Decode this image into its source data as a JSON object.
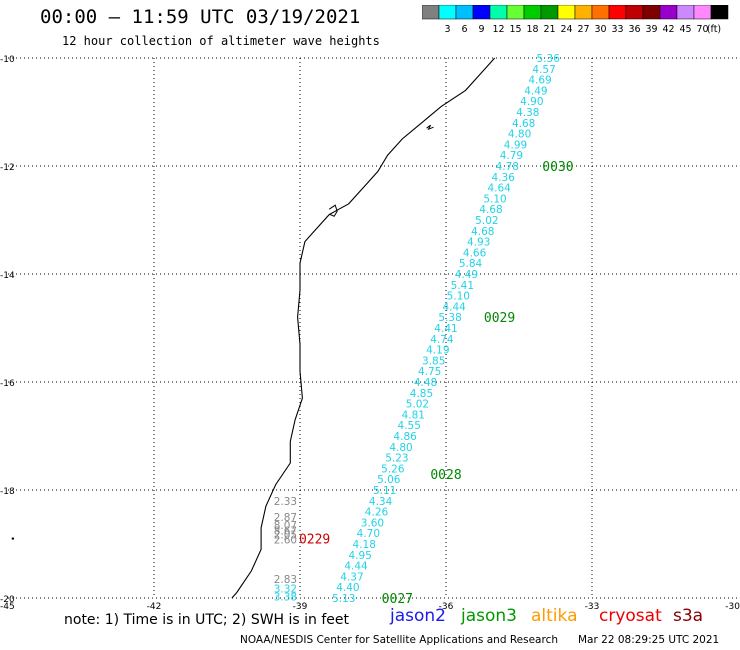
{
  "title": "00:00 – 11:59 UTC 03/19/2021",
  "subtitle": "12 hour collection of altimeter wave heights",
  "colorbar": {
    "labels": [
      "3",
      "6",
      "9",
      "12",
      "15",
      "18",
      "21",
      "24",
      "27",
      "30",
      "33",
      "36",
      "39",
      "42",
      "45",
      "70"
    ],
    "unit": "(ft)",
    "colors": [
      "#808080",
      "#00ffff",
      "#00bfff",
      "#0000ff",
      "#00ffaa",
      "#66ff33",
      "#00cc00",
      "#009900",
      "#ffff00",
      "#ffb000",
      "#ff7000",
      "#ff0000",
      "#c00000",
      "#800000",
      "#9900cc",
      "#cc88ff",
      "#ff88ff",
      "#000000"
    ]
  },
  "map": {
    "lat_labels": [
      "-10",
      "-12",
      "-14",
      "-16",
      "-18",
      "-20"
    ],
    "lon_labels": [
      "-45",
      "-42",
      "-39",
      "-36",
      "-33",
      "-30"
    ]
  },
  "chart_data": {
    "type": "scatter",
    "x_range": [
      -45,
      -30
    ],
    "y_range": [
      -20,
      -10
    ],
    "passes": [
      {
        "label": "0030",
        "lat": -12.0,
        "lon": -33.7,
        "color": "#008800"
      },
      {
        "label": "0029",
        "lat": -14.8,
        "lon": -34.9,
        "color": "#008800"
      },
      {
        "label": "0028",
        "lat": -17.7,
        "lon": -36.0,
        "color": "#008800"
      },
      {
        "label": "0027",
        "lat": -20.0,
        "lon": -37.0,
        "color": "#008800"
      },
      {
        "label": "0229",
        "lat": -18.9,
        "lon": -38.7,
        "color": "#cc0000"
      }
    ],
    "track_jason3": {
      "color": "#22d3e6",
      "lat_start": -10.0,
      "lon_start": -33.9,
      "lat_end": -20.0,
      "lon_end": -38.1,
      "values": [
        "5.36",
        "4.57",
        "4.69",
        "4.49",
        "4.90",
        "4.38",
        "4.68",
        "4.80",
        "4.99",
        "4.79",
        "4.78",
        "4.36",
        "4.64",
        "5.10",
        "4.68",
        "5.02",
        "4.68",
        "4.93",
        "4.66",
        "5.84",
        "4.49",
        "5.41",
        "5.10",
        "4.44",
        "5.38",
        "4.41",
        "4.74",
        "4.19",
        "3.85",
        "4.75",
        "4.48",
        "4.85",
        "5.02",
        "4.81",
        "4.55",
        "4.86",
        "4.80",
        "5.23",
        "5.26",
        "5.06",
        "5.11",
        "4.34",
        "4.26",
        "3.60",
        "4.70",
        "4.18",
        "4.95",
        "4.44",
        "4.37",
        "4.40",
        "5.13"
      ]
    },
    "track_gray": {
      "color": "#888888",
      "points": [
        {
          "lat": -18.2,
          "lon": -39.3,
          "value": "2.33"
        },
        {
          "lat": -18.5,
          "lon": -39.3,
          "value": "2.87"
        },
        {
          "lat": -18.65,
          "lon": -39.3,
          "value": "8.07"
        },
        {
          "lat": -18.75,
          "lon": -39.3,
          "value": "8.67"
        },
        {
          "lat": -18.82,
          "lon": -39.3,
          "value": "2.05"
        },
        {
          "lat": -18.92,
          "lon": -39.3,
          "value": "2.60"
        },
        {
          "lat": -19.65,
          "lon": -39.3,
          "value": "2.83"
        }
      ]
    },
    "track_cyan_south": {
      "color": "#22d3e6",
      "points": [
        {
          "lat": -19.82,
          "lon": -39.3,
          "value": "3.32"
        },
        {
          "lat": -19.97,
          "lon": -39.3,
          "value": "3.38"
        }
      ]
    }
  },
  "note": "note:  1) Time is in UTC;  2) SWH is in feet",
  "satellites": [
    {
      "name": "jason2",
      "color": "#1a1aee"
    },
    {
      "name": "jason3",
      "color": "#009900"
    },
    {
      "name": "altika",
      "color": "#ff9900"
    },
    {
      "name": "cryosat",
      "color": "#ee0000"
    },
    {
      "name": "s3a",
      "color": "#880000"
    }
  ],
  "footer": {
    "center": "NOAA/NESDIS Center for Satellite Applications and Research",
    "timestamp": "Mar 22 08:29:25 UTC 2021"
  }
}
